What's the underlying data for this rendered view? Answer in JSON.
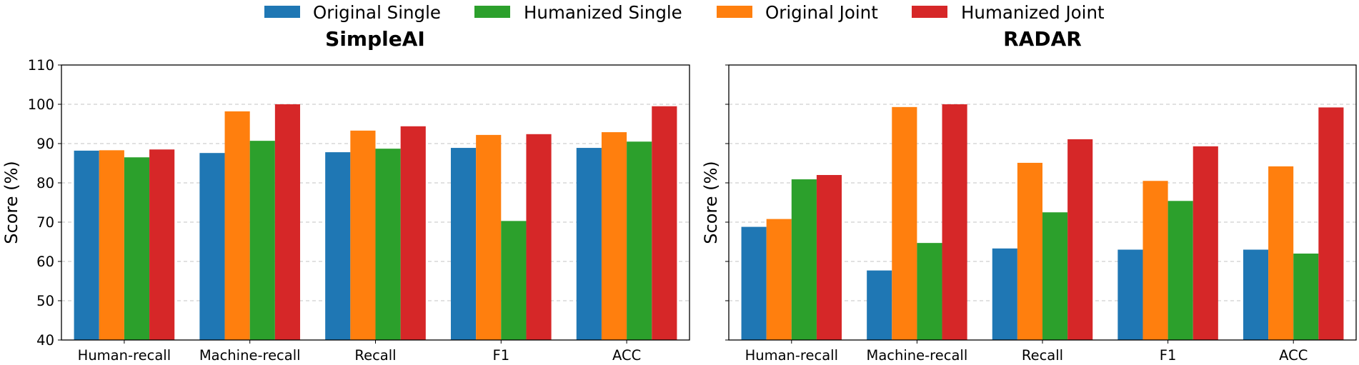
{
  "legend": [
    {
      "name": "Original Single",
      "color": "#1f77b4"
    },
    {
      "name": "Humanized Single",
      "color": "#2ca02c"
    },
    {
      "name": "Original Joint",
      "color": "#ff7f0e"
    },
    {
      "name": "Humanized Joint",
      "color": "#d62728"
    }
  ],
  "chart_data": [
    {
      "type": "bar",
      "title": "SimpleAI",
      "xlabel": "",
      "ylabel": "Score (%)",
      "ylim": [
        40,
        110
      ],
      "yticks": [
        40,
        50,
        60,
        70,
        80,
        90,
        100,
        110
      ],
      "grid": "y-dashed",
      "categories": [
        "Human-recall",
        "Machine-recall",
        "Recall",
        "F1",
        "ACC"
      ],
      "series": [
        {
          "name": "Original Single",
          "color": "#1f77b4",
          "values": [
            88.2,
            87.6,
            87.8,
            88.9,
            88.9
          ]
        },
        {
          "name": "Original Joint",
          "color": "#ff7f0e",
          "values": [
            88.3,
            98.2,
            93.3,
            92.2,
            92.9
          ]
        },
        {
          "name": "Humanized Single",
          "color": "#2ca02c",
          "values": [
            86.5,
            90.7,
            88.7,
            70.3,
            90.5
          ]
        },
        {
          "name": "Humanized Joint",
          "color": "#d62728",
          "values": [
            88.5,
            100.0,
            94.4,
            92.4,
            99.5
          ]
        }
      ]
    },
    {
      "type": "bar",
      "title": "RADAR",
      "xlabel": "",
      "ylabel": "Score (%)",
      "ylim": [
        40,
        110
      ],
      "yticks": [
        40,
        50,
        60,
        70,
        80,
        90,
        100,
        110
      ],
      "grid": "y-dashed",
      "categories": [
        "Human-recall",
        "Machine-recall",
        "Recall",
        "F1",
        "ACC"
      ],
      "series": [
        {
          "name": "Original Single",
          "color": "#1f77b4",
          "values": [
            68.8,
            57.7,
            63.3,
            63.0,
            63.0
          ]
        },
        {
          "name": "Original Joint",
          "color": "#ff7f0e",
          "values": [
            70.8,
            99.3,
            85.1,
            80.5,
            84.2
          ]
        },
        {
          "name": "Humanized Single",
          "color": "#2ca02c",
          "values": [
            80.9,
            64.7,
            72.5,
            75.4,
            62.0
          ]
        },
        {
          "name": "Humanized Joint",
          "color": "#d62728",
          "values": [
            82.0,
            100.0,
            91.1,
            89.3,
            99.2
          ]
        }
      ]
    }
  ]
}
